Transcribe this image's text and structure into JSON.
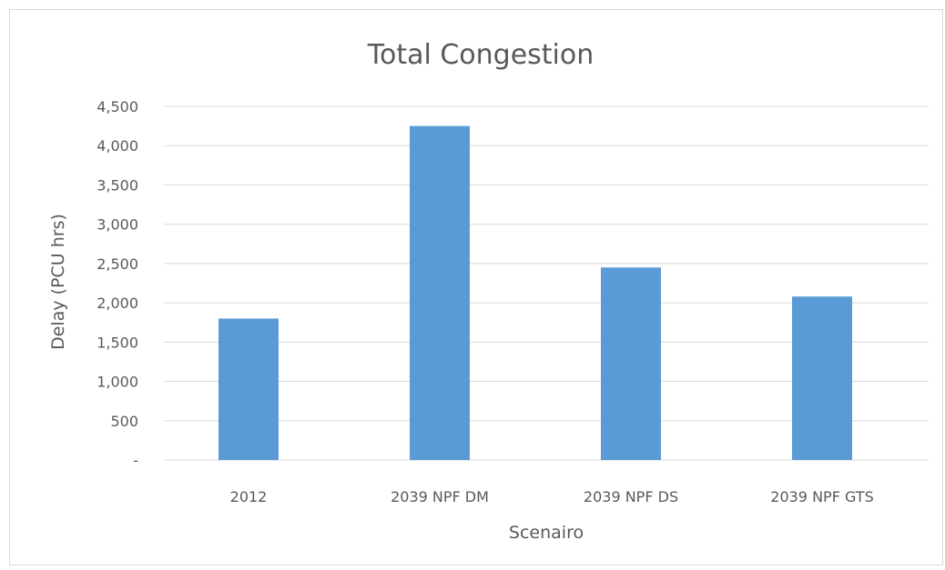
{
  "chart_data": {
    "type": "bar",
    "title": "Total Congestion",
    "xlabel": "Scenairo",
    "ylabel": "Delay (PCU hrs)",
    "categories": [
      "2012",
      "2039 NPF DM",
      "2039 NPF DS",
      "2039 NPF GTS"
    ],
    "values": [
      1800,
      4250,
      2450,
      2080
    ],
    "ylim": [
      0,
      4500
    ],
    "yticks": [
      {
        "value": 0,
        "label": "-"
      },
      {
        "value": 500,
        "label": "500"
      },
      {
        "value": 1000,
        "label": "1,000"
      },
      {
        "value": 1500,
        "label": "1,500"
      },
      {
        "value": 2000,
        "label": "2,000"
      },
      {
        "value": 2500,
        "label": "2,500"
      },
      {
        "value": 3000,
        "label": "3,000"
      },
      {
        "value": 3500,
        "label": "3,500"
      },
      {
        "value": 4000,
        "label": "4,000"
      },
      {
        "value": 4500,
        "label": "4,500"
      }
    ],
    "grid": true,
    "legend": "none",
    "bar_color": "#5b9bd5",
    "grid_color": "#d9d9d9"
  }
}
